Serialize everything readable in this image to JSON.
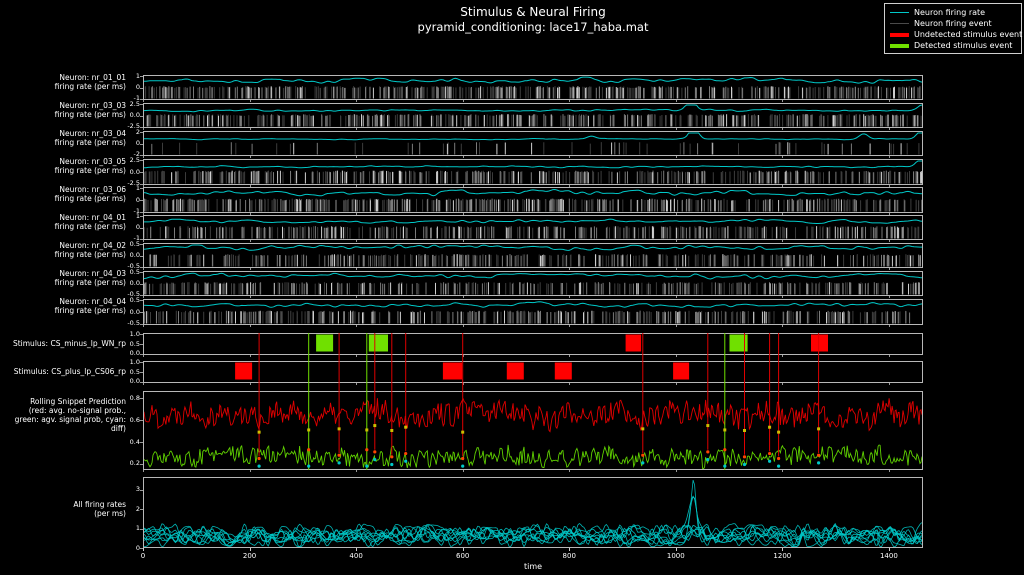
{
  "title": "Stimulus & Neural Firing",
  "subtitle": "pyramid_conditioning: lace17_haba.mat",
  "legend": {
    "items": [
      {
        "label": "Neuron firing rate",
        "color": "#00c8c8",
        "thick": false
      },
      {
        "label": "Neuron firing event",
        "color": "#4a4a4a",
        "thick": false
      },
      {
        "label": "Undetected stimulus event",
        "color": "#ff0000",
        "thick": true
      },
      {
        "label": "Detected stimulus event",
        "color": "#70e000",
        "thick": true
      }
    ]
  },
  "chart_data": {
    "type": "line",
    "xlabel": "time",
    "x_max": 1464,
    "x_ticks": [
      0,
      200,
      400,
      600,
      800,
      1000,
      1200,
      1400
    ],
    "colors": {
      "rate": "#00c8c8",
      "raster": "#6e6e6e",
      "undetected": "#ff0000",
      "detected": "#70e000",
      "pred_red": "#e00000",
      "pred_green": "#5fd000",
      "marker_yellow": "#cdbe00",
      "marker_orange": "#ff4400",
      "marker_cyan": "#00c8c8",
      "border": "#b8b8b8"
    },
    "panels": [
      {
        "kind": "neuron",
        "name": "nr_01_01",
        "label": [
          "Neuron: nr_01_01",
          "firing rate (per ms)"
        ],
        "yticks": [
          "1",
          "0",
          "-1"
        ],
        "rate_amp": 0.14,
        "raster_density": 0.85,
        "seed": 1,
        "spikes": []
      },
      {
        "kind": "neuron",
        "name": "nr_03_03",
        "label": [
          "Neuron: nr_03_03",
          "firing rate (per ms)"
        ],
        "yticks": [
          "2.5",
          "0.0",
          "-2.5"
        ],
        "rate_amp": 0.06,
        "raster_density": 0.8,
        "seed": 2,
        "spikes": [
          {
            "t": 1027,
            "h": 0.55
          },
          {
            "t": 1462,
            "h": 0.28
          }
        ]
      },
      {
        "kind": "neuron",
        "name": "nr_03_04",
        "label": [
          "Neuron: nr_03_04",
          "firing rate (per ms)"
        ],
        "yticks": [
          "2",
          "0",
          "-2"
        ],
        "rate_amp": 0.03,
        "raster_density": 0.12,
        "seed": 3,
        "spikes": [
          {
            "t": 840,
            "h": 0.12
          },
          {
            "t": 1032,
            "h": 0.55
          },
          {
            "t": 1351,
            "h": 0.22
          },
          {
            "t": 1460,
            "h": 0.42
          }
        ]
      },
      {
        "kind": "neuron",
        "name": "nr_03_05",
        "label": [
          "Neuron: nr_03_05",
          "firing rate (per ms)"
        ],
        "yticks": [
          "2.5",
          "0.0",
          "-2.5"
        ],
        "rate_amp": 0.05,
        "raster_density": 0.8,
        "seed": 4,
        "spikes": [
          {
            "t": 1458,
            "h": 0.35
          }
        ]
      },
      {
        "kind": "neuron",
        "name": "nr_03_06",
        "label": [
          "Neuron: nr_03_06",
          "firing rate (per ms)"
        ],
        "yticks": [
          "1",
          "0",
          "-1"
        ],
        "rate_amp": 0.13,
        "raster_density": 0.85,
        "seed": 5,
        "spikes": []
      },
      {
        "kind": "neuron",
        "name": "nr_04_01",
        "label": [
          "Neuron: nr_04_01",
          "firing rate (per ms)"
        ],
        "yticks": [
          "1",
          "0",
          "-1"
        ],
        "rate_amp": 0.1,
        "raster_density": 0.7,
        "seed": 6,
        "spikes": []
      },
      {
        "kind": "neuron",
        "name": "nr_04_02",
        "label": [
          "Neuron: nr_04_02",
          "firing rate (per ms)"
        ],
        "yticks": [
          "0.5",
          "0.0",
          "-0.5"
        ],
        "rate_amp": 0.15,
        "raster_density": 0.65,
        "seed": 7,
        "spikes": []
      },
      {
        "kind": "neuron",
        "name": "nr_04_03",
        "label": [
          "Neuron: nr_04_03",
          "firing rate (per ms)"
        ],
        "yticks": [
          "0.5",
          "0.0",
          "-0.5"
        ],
        "rate_amp": 0.15,
        "raster_density": 0.65,
        "seed": 8,
        "spikes": []
      },
      {
        "kind": "neuron",
        "name": "nr_04_04",
        "label": [
          "Neuron: nr_04_04",
          "firing rate (per ms)"
        ],
        "yticks": [
          "0.5",
          "0.0",
          "-0.5"
        ],
        "rate_amp": 0.13,
        "raster_density": 0.7,
        "seed": 9,
        "spikes": []
      },
      {
        "kind": "stimulus",
        "name": "CS_minus_lp_WN_rp",
        "label": [
          "Stimulus: CS_minus_lp_WN_rp"
        ],
        "yticks": [
          "1.0",
          "0.5",
          "0.0"
        ],
        "blocks": [
          {
            "start": 323,
            "end": 355,
            "status": "detected"
          },
          {
            "start": 422,
            "end": 458,
            "status": "detected"
          },
          {
            "start": 904,
            "end": 933,
            "status": "undetected"
          },
          {
            "start": 1099,
            "end": 1133,
            "status": "detected"
          },
          {
            "start": 1252,
            "end": 1284,
            "status": "undetected"
          }
        ]
      },
      {
        "kind": "stimulus",
        "name": "CS_plus_lp_CS06_rp",
        "label": [
          "Stimulus: CS_plus_lp_CS06_rp"
        ],
        "yticks": [
          "1.0",
          "0.5",
          "0.0"
        ],
        "blocks": [
          {
            "start": 171,
            "end": 203,
            "status": "undetected"
          },
          {
            "start": 561,
            "end": 597,
            "status": "undetected"
          },
          {
            "start": 681,
            "end": 713,
            "status": "undetected"
          },
          {
            "start": 771,
            "end": 803,
            "status": "undetected"
          },
          {
            "start": 993,
            "end": 1023,
            "status": "undetected"
          }
        ]
      },
      {
        "kind": "prediction",
        "name": "rolling_snippet_prediction",
        "label": [
          "Rolling Snippet Prediction",
          "(red: avg. no-signal prob.,",
          "green: agv. signal prob, cyan: diff)"
        ],
        "yticks": [
          "0.8",
          "0.6",
          "0.4",
          "0.2"
        ],
        "ylim": [
          0.145,
          0.865
        ],
        "red_mean": 0.66,
        "green_mean": 0.26,
        "seed": 21
      },
      {
        "kind": "all_rates",
        "name": "all_firing_rates",
        "label": [
          "All firing rates",
          "(per ms)"
        ],
        "yticks": [
          "3",
          "2",
          "1",
          "0"
        ],
        "ylim": [
          0,
          3.66
        ],
        "n_traces": 9,
        "spike_t": 1034,
        "spike_heights": [
          3.4,
          2.6,
          1.55
        ],
        "seed": 31
      }
    ],
    "events": {
      "undetected_times": [
        218,
        368,
        435,
        467,
        493,
        600,
        938,
        1060,
        1129,
        1176,
        1193,
        1268
      ],
      "detected_times": [
        311,
        420,
        1092
      ]
    }
  }
}
